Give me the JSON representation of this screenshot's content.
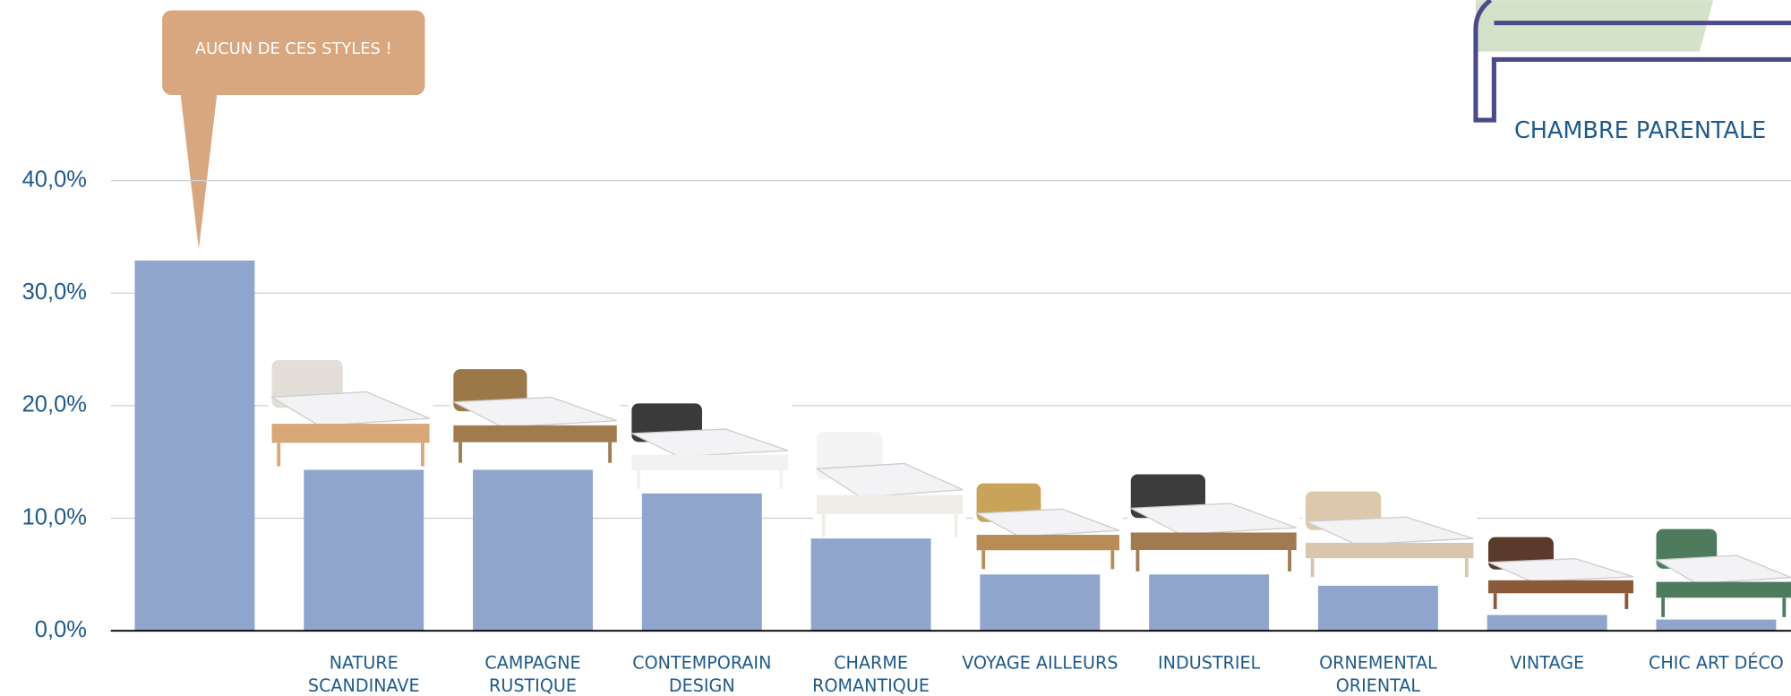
{
  "chart_data": {
    "type": "bar",
    "annotation": "AUCUN DE CES STYLES !",
    "legend_label": "CHAMBRE PARENTALE",
    "categories": [
      null,
      "NATURE SCANDINAVE",
      "CAMPAGNE RUSTIQUE",
      "CONTEMPORAIN DESIGN",
      "CHARME ROMANTIQUE",
      "VOYAGE AILLEURS",
      "INDUSTRIEL",
      "ORNEMENTAL ORIENTAL",
      "VINTAGE",
      "CHIC ART DÉCO"
    ],
    "values": [
      32.9,
      14.3,
      14.3,
      12.2,
      8.2,
      5.0,
      5.0,
      4.0,
      1.4,
      1.0
    ],
    "color": "#8fa5cc",
    "ylim": [
      0,
      40
    ],
    "yticks": [
      {
        "value": 0,
        "label": "0,0%"
      },
      {
        "value": 10,
        "label": "10,0%"
      },
      {
        "value": 20,
        "label": "20,0%"
      },
      {
        "value": 30,
        "label": "30,0%"
      },
      {
        "value": 40,
        "label": "40,0%"
      }
    ],
    "grid": true
  }
}
